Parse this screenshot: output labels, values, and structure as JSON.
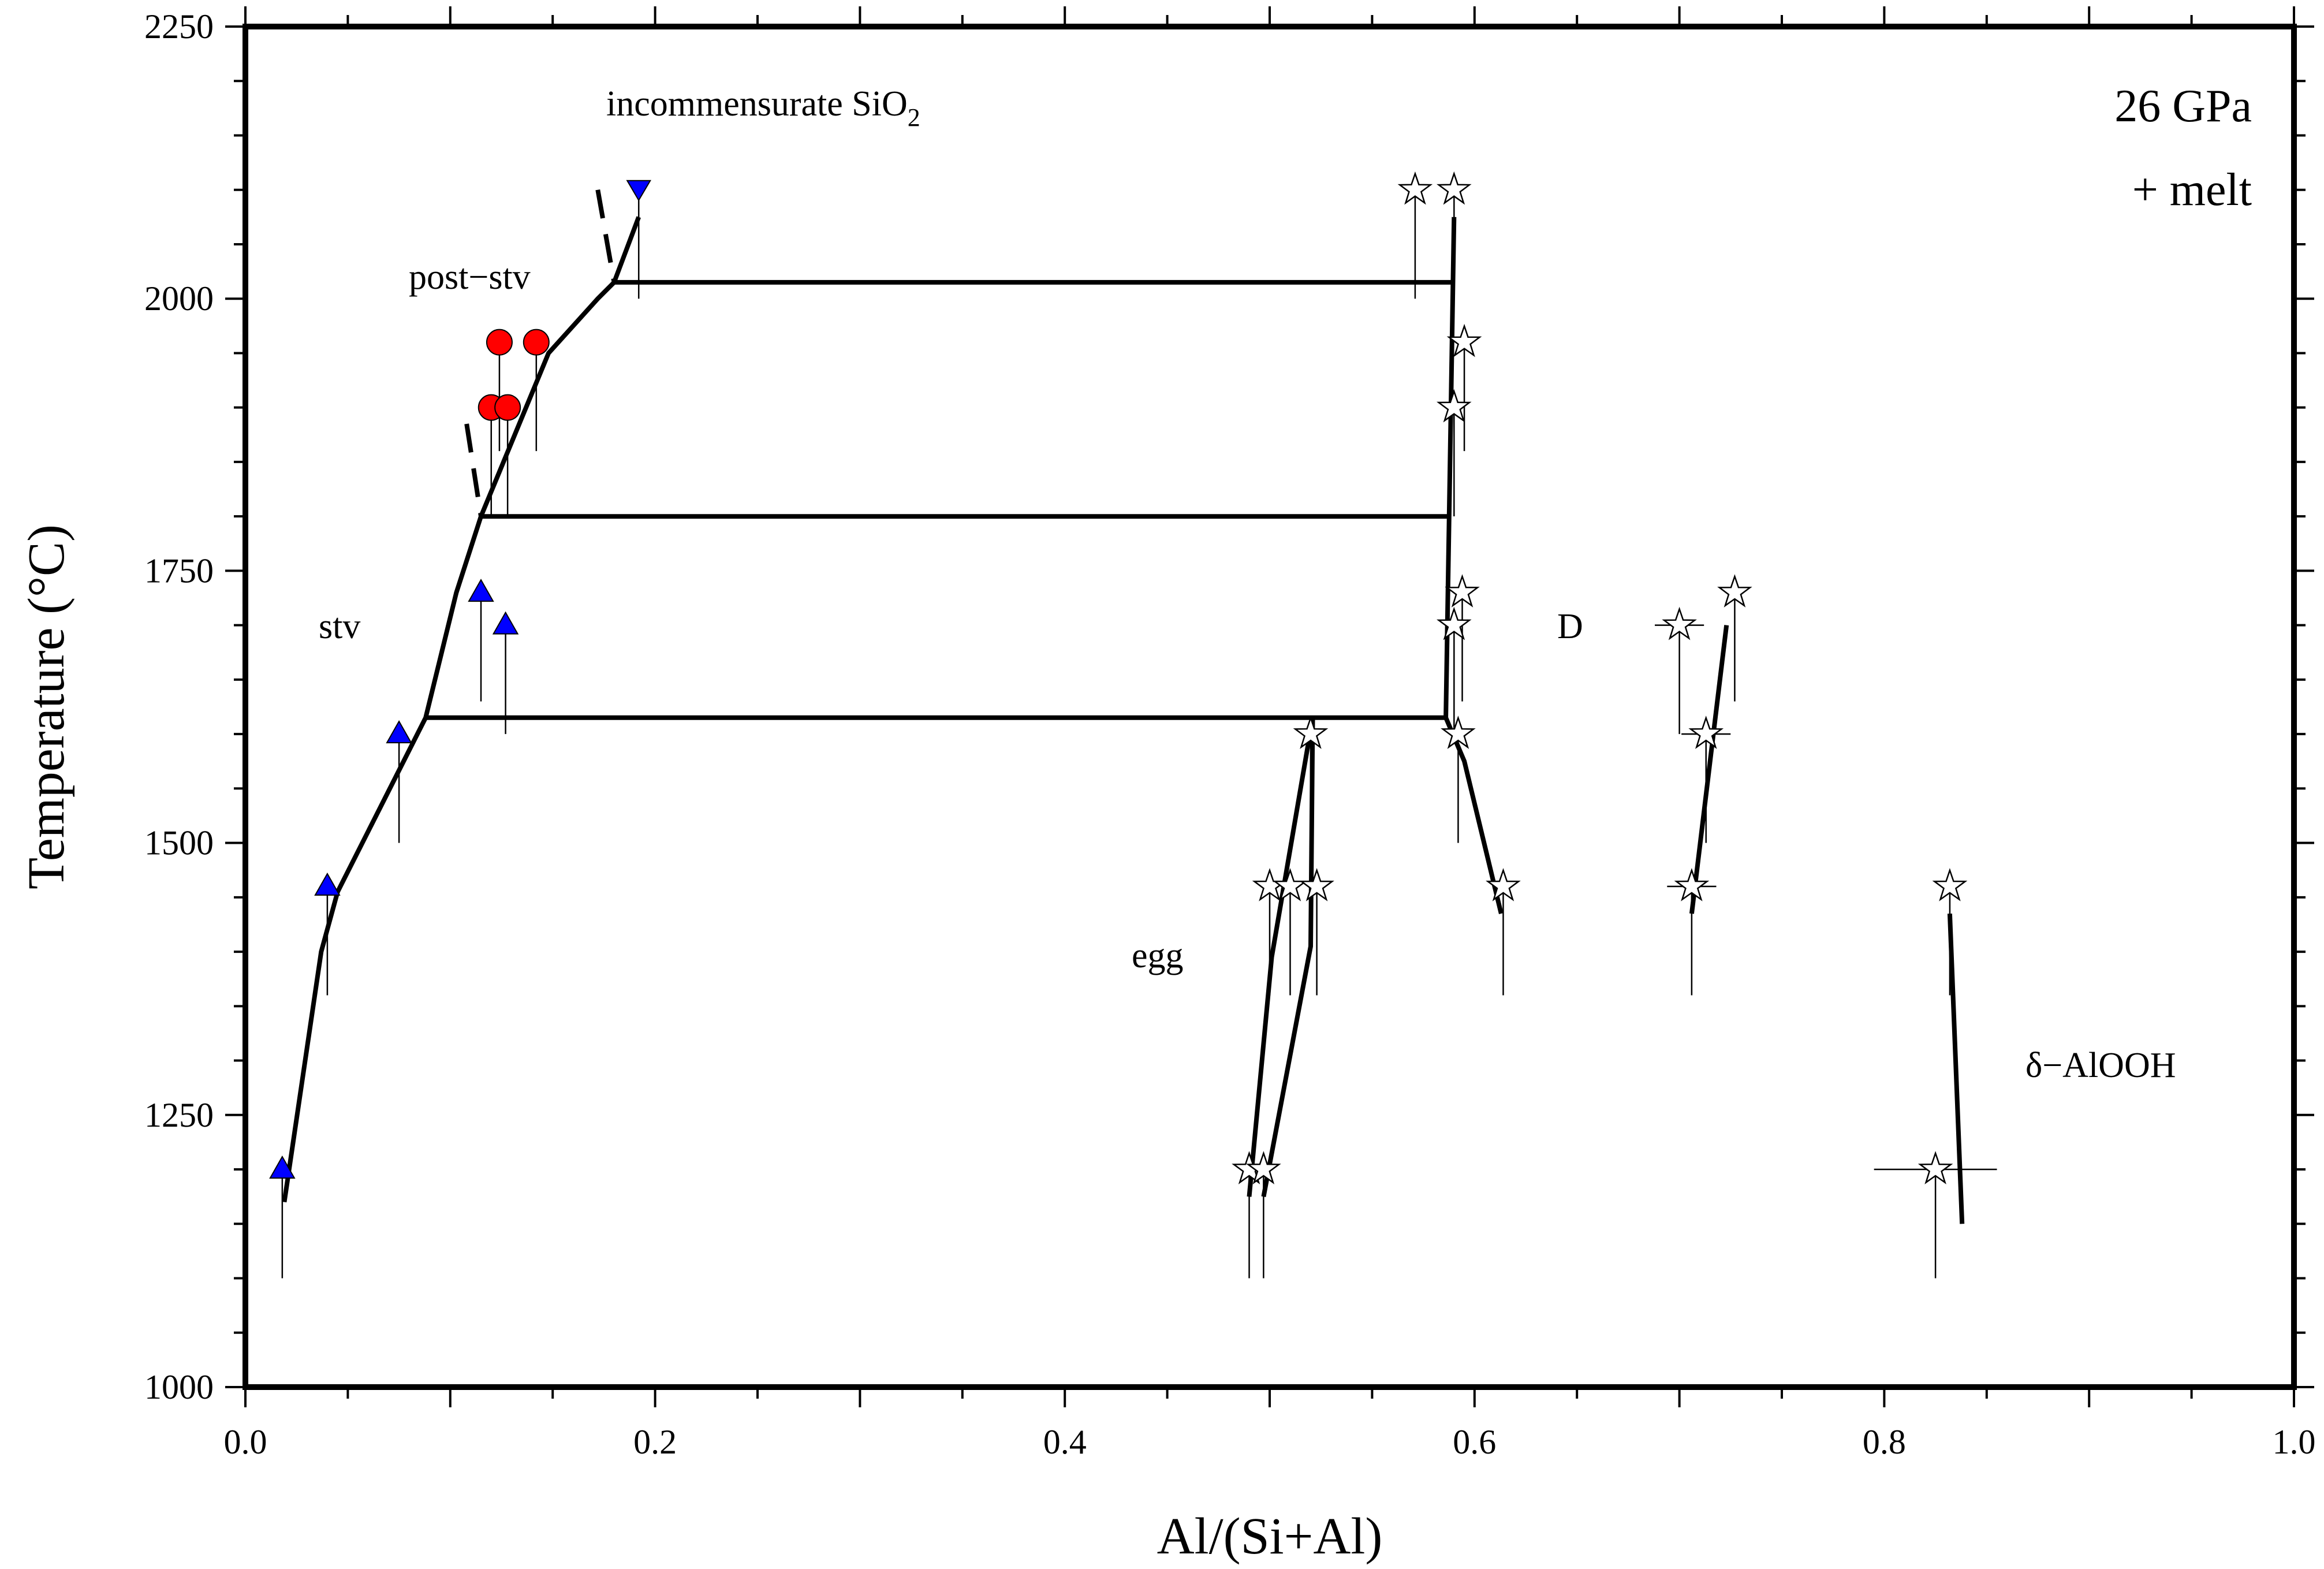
{
  "chart_data": {
    "type": "scatter",
    "xlabel": "Al/(Si+Al)",
    "ylabel": "Temperature (°C)",
    "xlim": [
      0.0,
      1.0
    ],
    "ylim": [
      1000,
      2250
    ],
    "x_ticks": [
      "0.0",
      "0.2",
      "0.4",
      "0.6",
      "0.8",
      "1.0"
    ],
    "y_ticks": [
      "1000",
      "1250",
      "1500",
      "1750",
      "2000",
      "2250"
    ],
    "grid": false,
    "legend": "none",
    "annotations": {
      "pressure": "26 GPa",
      "melt": "+ melt",
      "incommensurate_main": "incommensurate SiO",
      "incommensurate_sub": "2",
      "post_stv": "post−stv",
      "stv": "stv",
      "D": "D",
      "egg": "egg",
      "delta": "δ−AlOOH"
    },
    "colors": {
      "stv_symbol": "#0000ff",
      "post_stv_symbol": "#ff0000",
      "incommensurate_symbol": "#0000ff",
      "hydrous_phase_symbol": "#ffffff",
      "lines": "#000000"
    },
    "series": [
      {
        "marker": "triangle-up",
        "points": [
          {
            "x": 0.018,
            "y": 1200,
            "err_low": 1100
          },
          {
            "x": 0.04,
            "y": 1460,
            "err_low": 1360
          },
          {
            "x": 0.075,
            "y": 1600,
            "err_low": 1500
          },
          {
            "x": 0.115,
            "y": 1730,
            "err_low": 1630
          },
          {
            "x": 0.127,
            "y": 1700,
            "err_low": 1600
          }
        ]
      },
      {
        "marker": "circle",
        "points": [
          {
            "x": 0.124,
            "y": 1960,
            "err_low": 1860
          },
          {
            "x": 0.142,
            "y": 1960,
            "err_low": 1860
          },
          {
            "x": 0.12,
            "y": 1900,
            "err_low": 1800
          },
          {
            "x": 0.128,
            "y": 1900,
            "err_low": 1800
          }
        ]
      },
      {
        "marker": "triangle-down",
        "points": [
          {
            "x": 0.192,
            "y": 2100,
            "err_low": 2000
          }
        ]
      },
      {
        "marker": "star",
        "points": [
          {
            "x": 0.571,
            "y": 2100,
            "err_low": 2000
          },
          {
            "x": 0.59,
            "y": 2100,
            "err_low": 2000
          },
          {
            "x": 0.595,
            "y": 1960,
            "err_low": 1860
          },
          {
            "x": 0.59,
            "y": 1900,
            "err_low": 1800
          },
          {
            "x": 0.594,
            "y": 1730,
            "err_low": 1630
          },
          {
            "x": 0.59,
            "y": 1700,
            "err_low": 1600
          },
          {
            "x": 0.592,
            "y": 1600,
            "err_low": 1500
          },
          {
            "x": 0.614,
            "y": 1460,
            "err_low": 1360
          },
          {
            "x": 0.52,
            "y": 1600,
            "err_low": 1500
          },
          {
            "x": 0.5,
            "y": 1460,
            "err_low": 1360
          },
          {
            "x": 0.51,
            "y": 1460,
            "err_low": 1360
          },
          {
            "x": 0.523,
            "y": 1460,
            "err_low": 1360
          },
          {
            "x": 0.49,
            "y": 1200,
            "err_low": 1100
          },
          {
            "x": 0.497,
            "y": 1200,
            "err_low": 1100
          },
          {
            "x": 0.7,
            "y": 1700,
            "err_low": 1600,
            "xerr": 0.012
          },
          {
            "x": 0.713,
            "y": 1600,
            "err_low": 1500,
            "xerr": 0.012
          },
          {
            "x": 0.706,
            "y": 1460,
            "err_low": 1360,
            "xerr": 0.012
          },
          {
            "x": 0.727,
            "y": 1730,
            "err_low": 1630
          },
          {
            "x": 0.825,
            "y": 1200,
            "err_low": 1100,
            "xerr": 0.03
          },
          {
            "x": 0.832,
            "y": 1460,
            "err_low": 1360
          }
        ]
      }
    ],
    "boundaries": [
      {
        "style": "solid",
        "points": [
          [
            0.019,
            1170
          ],
          [
            0.037,
            1400
          ],
          [
            0.045,
            1455
          ],
          [
            0.088,
            1615
          ],
          [
            0.103,
            1730
          ],
          [
            0.115,
            1800
          ],
          [
            0.148,
            1950
          ],
          [
            0.172,
            2000
          ],
          [
            0.18,
            2015
          ],
          [
            0.192,
            2075
          ]
        ]
      },
      {
        "style": "dashed",
        "points": [
          [
            0.108,
            1885
          ],
          [
            0.115,
            1800
          ]
        ]
      },
      {
        "style": "dashed",
        "points": [
          [
            0.172,
            2100
          ],
          [
            0.18,
            2015
          ]
        ]
      },
      {
        "style": "solid",
        "points": [
          [
            0.18,
            2015
          ],
          [
            0.59,
            2015
          ]
        ]
      },
      {
        "style": "solid",
        "points": [
          [
            0.115,
            1800
          ],
          [
            0.588,
            1800
          ]
        ]
      },
      {
        "style": "solid",
        "points": [
          [
            0.088,
            1615
          ],
          [
            0.586,
            1615
          ]
        ]
      },
      {
        "style": "solid",
        "points": [
          [
            0.59,
            2075
          ],
          [
            0.586,
            1615
          ]
        ]
      },
      {
        "style": "solid",
        "points": [
          [
            0.586,
            1615
          ],
          [
            0.595,
            1575
          ],
          [
            0.613,
            1435
          ]
        ]
      },
      {
        "style": "solid",
        "points": [
          [
            0.49,
            1175
          ],
          [
            0.501,
            1395
          ],
          [
            0.521,
            1615
          ]
        ]
      },
      {
        "style": "solid",
        "points": [
          [
            0.497,
            1175
          ],
          [
            0.52,
            1405
          ],
          [
            0.521,
            1615
          ]
        ]
      },
      {
        "style": "solid",
        "points": [
          [
            0.706,
            1435
          ],
          [
            0.723,
            1700
          ]
        ]
      },
      {
        "style": "solid",
        "points": [
          [
            0.832,
            1435
          ],
          [
            0.838,
            1150
          ]
        ]
      }
    ]
  }
}
